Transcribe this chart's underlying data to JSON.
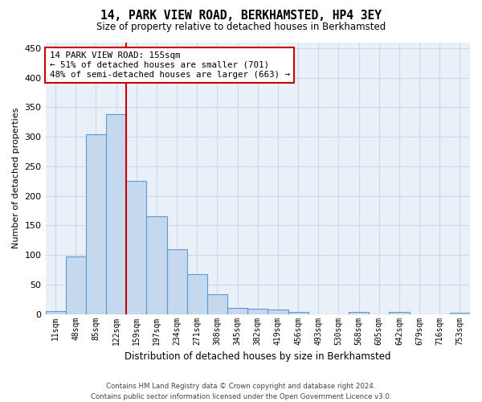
{
  "title": "14, PARK VIEW ROAD, BERKHAMSTED, HP4 3EY",
  "subtitle": "Size of property relative to detached houses in Berkhamsted",
  "xlabel": "Distribution of detached houses by size in Berkhamsted",
  "ylabel": "Number of detached properties",
  "footer_line1": "Contains HM Land Registry data © Crown copyright and database right 2024.",
  "footer_line2": "Contains public sector information licensed under the Open Government Licence v3.0.",
  "bins": [
    "11sqm",
    "48sqm",
    "85sqm",
    "122sqm",
    "159sqm",
    "197sqm",
    "234sqm",
    "271sqm",
    "308sqm",
    "345sqm",
    "382sqm",
    "419sqm",
    "456sqm",
    "493sqm",
    "530sqm",
    "568sqm",
    "605sqm",
    "642sqm",
    "679sqm",
    "716sqm",
    "753sqm"
  ],
  "bar_values": [
    5,
    98,
    304,
    338,
    225,
    165,
    110,
    67,
    33,
    11,
    9,
    7,
    4,
    0,
    0,
    3,
    0,
    3,
    0,
    0,
    2
  ],
  "bar_color": "#c5d8ed",
  "bar_edge_color": "#5b9bd5",
  "grid_color": "#d0d8e8",
  "background_color": "#eaf0f8",
  "vline_color": "#cc0000",
  "annotation_text": "14 PARK VIEW ROAD: 155sqm\n← 51% of detached houses are smaller (701)\n48% of semi-detached houses are larger (663) →",
  "annotation_box_facecolor": "#ffffff",
  "annotation_box_edgecolor": "#cc0000",
  "ylim": [
    0,
    460
  ],
  "yticks": [
    0,
    50,
    100,
    150,
    200,
    250,
    300,
    350,
    400,
    450
  ]
}
